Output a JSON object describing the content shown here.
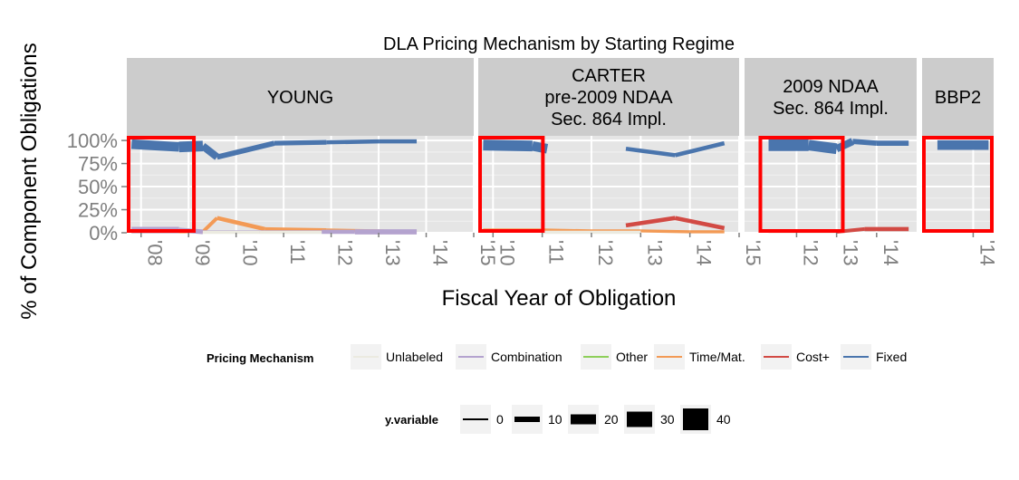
{
  "chart_data": {
    "type": "line",
    "title": "DLA Pricing Mechanism by Starting Regime",
    "xlabel": "Fiscal Year of Obligation",
    "ylabel": "% of Component Obligations",
    "y_ticks": [
      "100%",
      "75%",
      "50%",
      "25%",
      "0%"
    ],
    "ylim": [
      0,
      1.05
    ],
    "grid": true,
    "legend_position": "bottom",
    "colors": {
      "Unlabeled": "#ebeae0",
      "Combination": "#b4a3cf",
      "Other": "#8ecf5a",
      "Time/Mat.": "#f39a55",
      "Cost+": "#d24a44",
      "Fixed": "#4a75ad"
    },
    "legend": {
      "title": "Pricing Mechanism",
      "items": [
        "Unlabeled",
        "Combination",
        "Other",
        "Time/Mat.",
        "Cost+",
        "Fixed"
      ]
    },
    "size_legend": {
      "title": "y.variable",
      "items": [
        "0",
        "10",
        "20",
        "30",
        "40"
      ]
    },
    "highlight_color": "#ff0000",
    "panels": [
      {
        "strip": [
          "YOUNG"
        ],
        "xlim": [
          2007.7,
          2015
        ],
        "x_ticks": [
          "'08",
          "'09",
          "'10",
          "'11",
          "'12",
          "'13",
          "'14",
          "'15"
        ],
        "x_tick_values": [
          2008,
          2009,
          2010,
          2011,
          2012,
          2013,
          2014,
          2015
        ],
        "highlight": [
          2007.7,
          2009.15
        ],
        "series": [
          {
            "name": "Fixed",
            "x": [
              2007.8,
              2008.8,
              2009.3,
              2009.6,
              2010.8,
              2011.9,
              2013.0,
              2013.8
            ],
            "y": [
              0.96,
              0.93,
              0.94,
              0.82,
              0.97,
              0.98,
              0.99,
              0.99
            ],
            "size": [
              6,
              10,
              8,
              4,
              4,
              3,
              3,
              3
            ]
          },
          {
            "name": "Time/Mat.",
            "x": [
              2007.8,
              2009.3,
              2009.6,
              2010.6,
              2011.9,
              2013.0,
              2013.8
            ],
            "y": [
              0.01,
              0.01,
              0.16,
              0.04,
              0.03,
              0.02,
              0.01
            ],
            "size": [
              2,
              2,
              3,
              3,
              2,
              2,
              2
            ]
          },
          {
            "name": "Combination",
            "x": [
              2007.8,
              2008.8,
              2009.3,
              2010.5,
              2011.8,
              2012.5,
              2013.8
            ],
            "y": [
              0.03,
              0.03,
              0.01,
              0.01,
              0.01,
              0.01,
              0.01
            ],
            "size": [
              5,
              5,
              2,
              2,
              2,
              4,
              4
            ]
          },
          {
            "name": "Unlabeled",
            "x": [
              2009.3,
              2010.5,
              2011.8
            ],
            "y": [
              0.005,
              0.005,
              0.005
            ],
            "size": [
              2,
              2,
              2
            ]
          }
        ]
      },
      {
        "strip": [
          "CARTER",
          "pre-2009 NDAA",
          "Sec. 864 Impl."
        ],
        "xlim": [
          2009.7,
          2015
        ],
        "x_ticks": [
          "'10",
          "'11",
          "'12",
          "'13",
          "'14",
          "'15"
        ],
        "x_tick_values": [
          2010,
          2011,
          2012,
          2013,
          2014,
          2015
        ],
        "highlight": [
          2009.7,
          2011.05
        ],
        "series": [
          {
            "name": "Fixed",
            "x": [
              2009.8,
              2010.8,
              2011.1
            ],
            "y": [
              0.95,
              0.94,
              0.91
            ],
            "size": [
              8,
              10,
              6
            ]
          },
          {
            "name": "Fixed",
            "x": [
              2012.7,
              2013.7,
              2014.7
            ],
            "y": [
              0.91,
              0.84,
              0.97
            ],
            "size": [
              3,
              3,
              3
            ]
          },
          {
            "name": "Time/Mat.",
            "x": [
              2009.8,
              2011.0,
              2012.0,
              2013.0,
              2014.0,
              2014.7
            ],
            "y": [
              0.03,
              0.03,
              0.02,
              0.02,
              0.01,
              0.01
            ],
            "size": [
              2,
              2,
              2,
              2,
              2,
              2
            ]
          },
          {
            "name": "Cost+",
            "x": [
              2012.7,
              2013.7,
              2014.7
            ],
            "y": [
              0.08,
              0.16,
              0.05
            ],
            "size": [
              3,
              3,
              3
            ]
          },
          {
            "name": "Unlabeled",
            "x": [
              2011.0,
              2012.0,
              2013.0
            ],
            "y": [
              0.005,
              0.005,
              0.005
            ],
            "size": [
              2,
              2,
              2
            ]
          }
        ]
      },
      {
        "strip": [
          "2009 NDAA",
          "Sec. 864 Impl."
        ],
        "xlim": [
          2010.7,
          2015
        ],
        "x_ticks": [
          "'12",
          "'13",
          "'14"
        ],
        "x_tick_values": [
          2012,
          2013,
          2014
        ],
        "highlight": [
          2011.05,
          2013.2
        ],
        "series": [
          {
            "name": "Fixed",
            "x": [
              2011.3,
              2012.3,
              2013.0,
              2013.4,
              2014.0,
              2014.8
            ],
            "y": [
              0.95,
              0.95,
              0.91,
              0.99,
              0.97,
              0.97
            ],
            "size": [
              10,
              10,
              8,
              4,
              4,
              4
            ]
          },
          {
            "name": "Cost+",
            "x": [
              2013.0,
              2013.7,
              2014.8
            ],
            "y": [
              0.01,
              0.04,
              0.04
            ],
            "size": [
              2,
              3,
              3
            ]
          },
          {
            "name": "Time/Mat.",
            "x": [
              2011.3,
              2013.0
            ],
            "y": [
              0.02,
              0.02
            ],
            "size": [
              1,
              1
            ]
          },
          {
            "name": "Unlabeled",
            "x": [
              2011.3,
              2013.0
            ],
            "y": [
              0.005,
              0.005
            ],
            "size": [
              1,
              1
            ]
          }
        ]
      },
      {
        "strip": [
          "BBP2"
        ],
        "xlim": [
          2013.0,
          2014.4
        ],
        "x_ticks": [
          "'14"
        ],
        "x_tick_values": [
          2014
        ],
        "highlight": [
          2013.0,
          2014.4
        ],
        "series": [
          {
            "name": "Fixed",
            "x": [
              2013.3,
              2014.3
            ],
            "y": [
              0.95,
              0.95
            ],
            "size": [
              8,
              8
            ]
          },
          {
            "name": "Time/Mat.",
            "x": [
              2013.3,
              2014.3
            ],
            "y": [
              0.02,
              0.02
            ],
            "size": [
              1,
              1
            ]
          }
        ]
      }
    ]
  }
}
